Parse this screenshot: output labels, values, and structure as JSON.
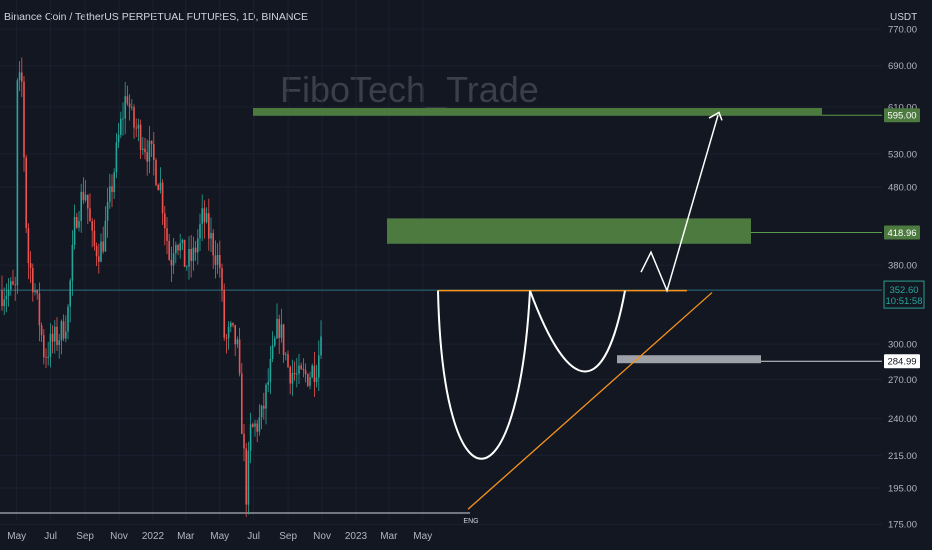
{
  "header": {
    "symbol_title": "Binance Coin / TetherUS PERPETUAL FUTURES, 1D, BINANCE",
    "currency": "USDT"
  },
  "watermark": "FiboTech_Trade",
  "chart_data": {
    "type": "candlestick",
    "y_scale": "log",
    "ylim": [
      162,
      840
    ],
    "y_ticks": [
      "770.00",
      "690.00",
      "610.00",
      "530.00",
      "480.00",
      "380.00",
      "300.00",
      "270.00",
      "240.00",
      "215.00",
      "195.00",
      "175.00"
    ],
    "x_ticks": [
      "May",
      "Jul",
      "Sep",
      "Nov",
      "2022",
      "Mar",
      "May",
      "Jul",
      "Sep",
      "Nov",
      "2023",
      "Mar",
      "May"
    ],
    "price_labels": {
      "target": "595.00",
      "zone": "418.96",
      "last_price": "352.60",
      "countdown": "10:51:58",
      "support": "284.99"
    },
    "annotations": {
      "low_marker": "ENG",
      "neckline_price": 352,
      "support_price": 285,
      "target_zone": [
        594,
        608
      ],
      "resistance_zone": [
        405,
        437
      ]
    },
    "price_path": [
      [
        "2021-05-01",
        640
      ],
      [
        "2021-05-10",
        660
      ],
      [
        "2021-05-20",
        390
      ],
      [
        "2021-06-01",
        360
      ],
      [
        "2021-06-20",
        290
      ],
      [
        "2021-07-01",
        300
      ],
      [
        "2021-07-20",
        310
      ],
      [
        "2021-08-01",
        330
      ],
      [
        "2021-08-15",
        440
      ],
      [
        "2021-09-01",
        480
      ],
      [
        "2021-09-15",
        400
      ],
      [
        "2021-10-01",
        400
      ],
      [
        "2021-10-15",
        460
      ],
      [
        "2021-11-01",
        560
      ],
      [
        "2021-11-15",
        640
      ],
      [
        "2021-11-25",
        580
      ],
      [
        "2021-12-10",
        560
      ],
      [
        "2022-01-01",
        520
      ],
      [
        "2022-01-15",
        480
      ],
      [
        "2022-02-01",
        380
      ],
      [
        "2022-02-10",
        420
      ],
      [
        "2022-03-01",
        380
      ],
      [
        "2022-03-15",
        390
      ],
      [
        "2022-04-01",
        440
      ],
      [
        "2022-04-10",
        420
      ],
      [
        "2022-05-01",
        380
      ],
      [
        "2022-05-10",
        300
      ],
      [
        "2022-05-20",
        310
      ],
      [
        "2022-06-01",
        300
      ],
      [
        "2022-06-18",
        190
      ],
      [
        "2022-06-25",
        230
      ],
      [
        "2022-07-15",
        240
      ],
      [
        "2022-08-01",
        280
      ],
      [
        "2022-08-15",
        320
      ],
      [
        "2022-09-01",
        280
      ],
      [
        "2022-09-20",
        270
      ],
      [
        "2022-10-10",
        275
      ],
      [
        "2022-10-25",
        285
      ],
      [
        "2022-11-03",
        352
      ]
    ]
  }
}
